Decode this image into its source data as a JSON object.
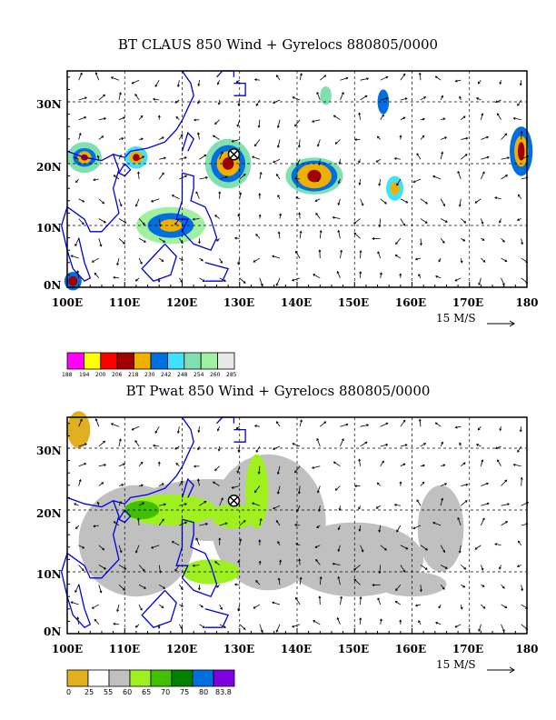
{
  "panel1": {
    "title": "BT CLAUS 850 Wind + Gyrelocs 880805/0000",
    "lat_labels": [
      "30N",
      "20N",
      "10N",
      "0N"
    ],
    "lon_labels": [
      "100E",
      "110E",
      "120E",
      "130E",
      "140E",
      "150E",
      "160E",
      "170E",
      "180"
    ],
    "scale_label": "15 M/S",
    "colorbar": {
      "labels": [
        "188",
        "194",
        "200",
        "206",
        "218",
        "230",
        "242",
        "248",
        "254",
        "260",
        "285"
      ],
      "colors": [
        "#ff00ff",
        "#ffff00",
        "#ff0000",
        "#a00000",
        "#f0b000",
        "#0070e0",
        "#40e0ff",
        "#80e0b0",
        "#a0f0a0",
        "#e8e8e8"
      ]
    }
  },
  "panel2": {
    "title": "BT Pwat 850 Wind + Gyrelocs 880805/0000",
    "lat_labels": [
      "30N",
      "20N",
      "10N",
      "0N"
    ],
    "lon_labels": [
      "100E",
      "110E",
      "120E",
      "130E",
      "140E",
      "150E",
      "160E",
      "170E",
      "180"
    ],
    "scale_label": "15 M/S",
    "colorbar": {
      "labels": [
        "0",
        "25",
        "55",
        "60",
        "65",
        "70",
        "75",
        "80",
        "83.8"
      ],
      "colors": [
        "#e0b020",
        "#ffffff",
        "#c0c0c0",
        "#a0f020",
        "#40c000",
        "#008000",
        "#0070e0",
        "#8000e0"
      ]
    }
  },
  "map": {
    "lon_range": [
      100,
      180
    ],
    "lat_range": [
      0,
      35
    ],
    "gyre_location": {
      "lon": 129,
      "lat": 21.5
    }
  }
}
